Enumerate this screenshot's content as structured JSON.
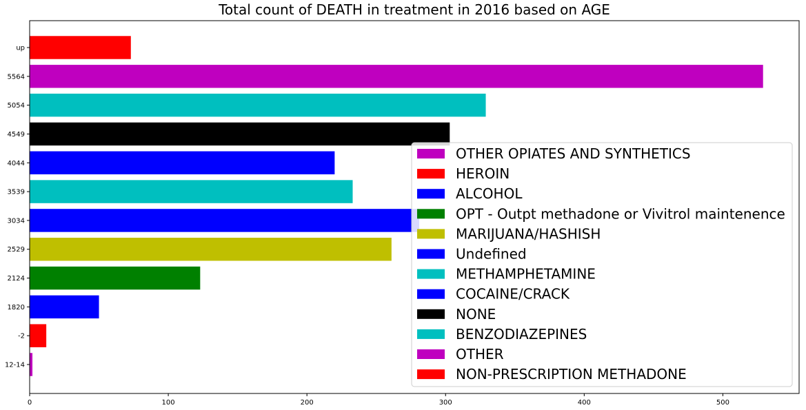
{
  "chart_data": {
    "type": "bar",
    "orientation": "horizontal",
    "title": "Total count of DEATH in treatment in 2016 based on AGE",
    "xlabel": "",
    "ylabel": "",
    "xlim": [
      0,
      555
    ],
    "x_ticks": [
      0,
      100,
      200,
      300,
      400,
      500
    ],
    "categories": [
      "12-14",
      "-2",
      "1820",
      "2124",
      "2529",
      "3034",
      "3539",
      "4044",
      "4549",
      "5054",
      "5564",
      "up"
    ],
    "values": [
      2,
      12,
      50,
      123,
      261,
      281,
      233,
      220,
      303,
      329,
      529,
      73
    ],
    "bar_colors": [
      "#bf00bf",
      "#ff0000",
      "#0000ff",
      "#008000",
      "#bfbf00",
      "#0000ff",
      "#00bfbf",
      "#0000ff",
      "#000000",
      "#00bfbf",
      "#bf00bf",
      "#ff0000"
    ],
    "legend_position": "lower-right",
    "legend": [
      {
        "label": "OTHER OPIATES AND SYNTHETICS",
        "color": "#bf00bf"
      },
      {
        "label": "HEROIN",
        "color": "#ff0000"
      },
      {
        "label": "ALCOHOL",
        "color": "#0000ff"
      },
      {
        "label": "OPT - Outpt methadone or Vivitrol maintenence",
        "color": "#008000"
      },
      {
        "label": "MARIJUANA/HASHISH",
        "color": "#bfbf00"
      },
      {
        "label": "Undefined",
        "color": "#0000ff"
      },
      {
        "label": "METHAMPHETAMINE",
        "color": "#00bfbf"
      },
      {
        "label": "COCAINE/CRACK",
        "color": "#0000ff"
      },
      {
        "label": "NONE",
        "color": "#000000"
      },
      {
        "label": "BENZODIAZEPINES",
        "color": "#00bfbf"
      },
      {
        "label": "OTHER",
        "color": "#bf00bf"
      },
      {
        "label": "NON-PRESCRIPTION METHADONE",
        "color": "#ff0000"
      }
    ],
    "grid": false
  }
}
